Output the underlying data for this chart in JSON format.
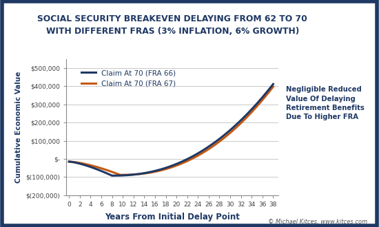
{
  "title": "SOCIAL SECURITY BREAKEVEN DELAYING FROM 62 TO 70\nWITH DIFFERENT FRAS (3% INFLATION, 6% GROWTH)",
  "xlabel": "Years From Initial Delay Point",
  "ylabel": "Cumulative Economic Value",
  "x_ticks": [
    0,
    2,
    4,
    6,
    8,
    10,
    12,
    14,
    16,
    18,
    20,
    22,
    24,
    26,
    28,
    30,
    32,
    34,
    36,
    38
  ],
  "ylim": [
    -200000,
    550000
  ],
  "yticks": [
    -200000,
    -100000,
    0,
    100000,
    200000,
    300000,
    400000,
    500000
  ],
  "ytick_labels": [
    "$(200,000)",
    "$(100,000)",
    "$-",
    "$100,000",
    "$200,000",
    "$300,000",
    "$400,000",
    "$500,000"
  ],
  "line1_label": "Claim At 70 (FRA 66)",
  "line1_color": "#1f3864",
  "line2_label": "Claim At 70 (FRA 67)",
  "line2_color": "#c55a11",
  "annotation_text": "Negligible Reduced\nValue Of Delaying\nRetirement Benefits\nDue To Higher FRA",
  "annotation_color": "#1f3864",
  "copyright_text": "© Michael Kitces, www.kitces.com",
  "copyright_color": "#555555",
  "background_color": "#ffffff",
  "border_color": "#1f3864",
  "grid_color": "#c8c8c8",
  "title_color": "#1f3864",
  "axis_label_color": "#1f3864",
  "tick_label_color": "#404040"
}
